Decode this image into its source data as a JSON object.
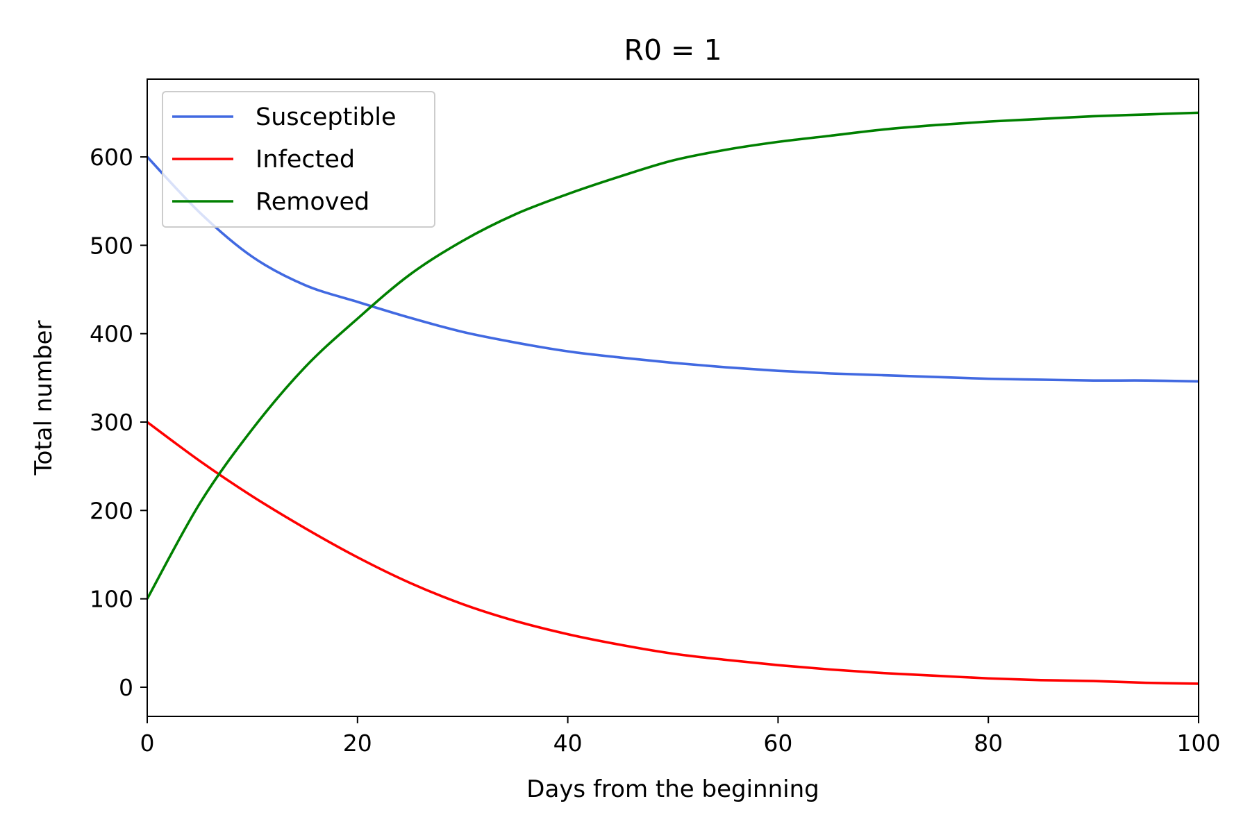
{
  "chart_data": {
    "type": "line",
    "title": "R0 = 1",
    "xlabel": "Days from the beginning",
    "ylabel": "Total number",
    "xlim": [
      0,
      100
    ],
    "ylim": [
      -33,
      688
    ],
    "xticks": [
      0,
      20,
      40,
      60,
      80,
      100
    ],
    "yticks": [
      0,
      100,
      200,
      300,
      400,
      500,
      600
    ],
    "grid": false,
    "legend_position": "upper-left",
    "x": [
      0,
      5,
      10,
      15,
      20,
      25,
      30,
      35,
      40,
      45,
      50,
      55,
      60,
      65,
      70,
      75,
      80,
      85,
      90,
      95,
      100
    ],
    "series": [
      {
        "name": "Susceptible",
        "color": "#4169E1",
        "values": [
          600,
          537,
          487,
          455,
          436,
          418,
          402,
          390,
          380,
          373,
          367,
          362,
          358,
          355,
          353,
          351,
          349,
          348,
          347,
          347,
          346
        ]
      },
      {
        "name": "Infected",
        "color": "#FF0000",
        "values": [
          300,
          256,
          216,
          180,
          147,
          118,
          94,
          75,
          60,
          48,
          38,
          31,
          25,
          20,
          16,
          13,
          10,
          8,
          7,
          5,
          4
        ]
      },
      {
        "name": "Removed",
        "color": "#008000",
        "values": [
          100,
          208,
          292,
          362,
          417,
          467,
          505,
          535,
          558,
          578,
          596,
          608,
          617,
          624,
          631,
          636,
          640,
          643,
          646,
          648,
          650
        ]
      }
    ]
  }
}
